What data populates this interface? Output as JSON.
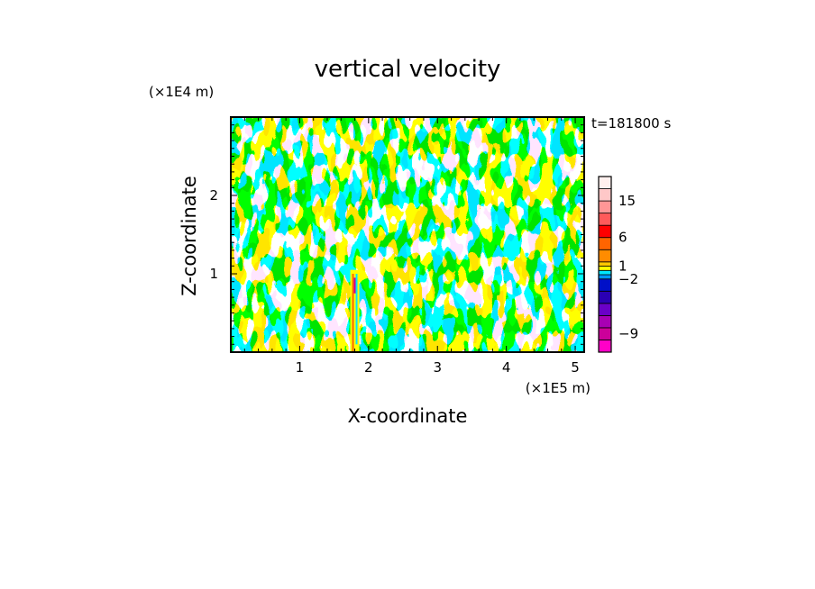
{
  "chart_data": {
    "type": "heatmap",
    "title": "vertical velocity",
    "time_label": "t=181800 s",
    "xlabel": "X-coordinate",
    "ylabel": "Z-coordinate",
    "x_unit": "(×1E5 m)",
    "y_unit": "(×1E4 m)",
    "xlim": [
      0,
      5.13
    ],
    "ylim": [
      0,
      3.0
    ],
    "x_ticks": [
      1,
      2,
      3,
      4,
      5
    ],
    "y_ticks": [
      1,
      2
    ],
    "pattern": "alternating positive/negative vertical velocity bands (wave pattern)",
    "dominant_levels": {
      "positive": "0 to 1",
      "negative": "-1 to 0"
    },
    "features": [
      {
        "x": 1.8,
        "z": 0.95,
        "desc": "narrow strong updraft/downdraft column"
      }
    ],
    "colorbar": {
      "levels": [
        {
          "lo": -12,
          "hi": -10,
          "color": "#ff00c8"
        },
        {
          "lo": -10,
          "hi": -8,
          "color": "#cc009a"
        },
        {
          "lo": -8,
          "hi": -6,
          "color": "#a800b4"
        },
        {
          "lo": -6,
          "hi": -4,
          "color": "#6a00c8"
        },
        {
          "lo": -4,
          "hi": -3,
          "color": "#2a00b4"
        },
        {
          "lo": -3,
          "hi": -2,
          "color": "#0010c8"
        },
        {
          "lo": -2,
          "hi": -1,
          "color": "#0096ff"
        },
        {
          "lo": -1,
          "hi": 0,
          "color": "#00e6ff"
        },
        {
          "lo": 0,
          "hi": 1,
          "color": "#ffff00"
        },
        {
          "lo": 1,
          "hi": 2,
          "color": "#ffc800"
        },
        {
          "lo": 2,
          "hi": 4,
          "color": "#ff8c00"
        },
        {
          "lo": 4,
          "hi": 6,
          "color": "#ff6400"
        },
        {
          "lo": 6,
          "hi": 9,
          "color": "#ff0000"
        },
        {
          "lo": 9,
          "hi": 12,
          "color": "#ff5a5a"
        },
        {
          "lo": 12,
          "hi": 15,
          "color": "#ff9696"
        },
        {
          "lo": 15,
          "hi": 20,
          "color": "#ffc8c8"
        },
        {
          "lo": 20,
          "hi": 25,
          "color": "#fff0ee"
        }
      ],
      "tick_labels": [
        {
          "value": 15,
          "label": "15"
        },
        {
          "value": 6,
          "label": "6"
        },
        {
          "value": 1,
          "label": "1"
        },
        {
          "value": -2,
          "label": "−2"
        },
        {
          "value": -9,
          "label": "−9"
        }
      ]
    }
  }
}
